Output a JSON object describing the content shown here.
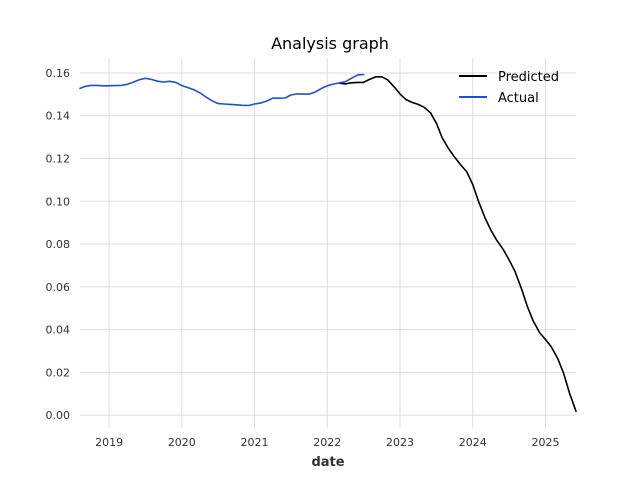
{
  "chart_data": {
    "type": "line",
    "title": "Analysis graph",
    "xlabel": "date",
    "ylabel": "",
    "xlim": [
      2018.6,
      2025.42
    ],
    "ylim": [
      -0.006,
      0.167
    ],
    "grid": true,
    "legend_position": "top-right",
    "x_ticks": [
      2019,
      2020,
      2021,
      2022,
      2023,
      2024,
      2025
    ],
    "y_ticks": [
      0.0,
      0.02,
      0.04,
      0.06,
      0.08,
      0.1,
      0.12,
      0.14,
      0.16
    ],
    "x_tick_labels": [
      "2019",
      "2020",
      "2021",
      "2022",
      "2023",
      "2024",
      "2025"
    ],
    "y_tick_labels": [
      "0.00",
      "0.02",
      "0.04",
      "0.06",
      "0.08",
      "0.10",
      "0.12",
      "0.14",
      "0.16"
    ],
    "series": [
      {
        "name": "Predicted",
        "color": "#000000",
        "points": [
          [
            2022.17,
            0.1552
          ],
          [
            2022.25,
            0.1549
          ],
          [
            2022.33,
            0.1554
          ],
          [
            2022.42,
            0.1556
          ],
          [
            2022.5,
            0.1556
          ],
          [
            2022.58,
            0.157
          ],
          [
            2022.67,
            0.1582
          ],
          [
            2022.75,
            0.1582
          ],
          [
            2022.83,
            0.1568
          ],
          [
            2022.92,
            0.1535
          ],
          [
            2023.0,
            0.1502
          ],
          [
            2023.08,
            0.1476
          ],
          [
            2023.17,
            0.1462
          ],
          [
            2023.25,
            0.1453
          ],
          [
            2023.33,
            0.144
          ],
          [
            2023.42,
            0.1414
          ],
          [
            2023.5,
            0.1365
          ],
          [
            2023.58,
            0.1297
          ],
          [
            2023.67,
            0.1245
          ],
          [
            2023.75,
            0.1207
          ],
          [
            2023.83,
            0.1172
          ],
          [
            2023.92,
            0.1137
          ],
          [
            2024.0,
            0.1079
          ],
          [
            2024.08,
            0.1
          ],
          [
            2024.17,
            0.0922
          ],
          [
            2024.25,
            0.0865
          ],
          [
            2024.33,
            0.0818
          ],
          [
            2024.42,
            0.0774
          ],
          [
            2024.5,
            0.0726
          ],
          [
            2024.58,
            0.0673
          ],
          [
            2024.67,
            0.0591
          ],
          [
            2024.75,
            0.0509
          ],
          [
            2024.83,
            0.0441
          ],
          [
            2024.92,
            0.0386
          ],
          [
            2025.0,
            0.0354
          ],
          [
            2025.08,
            0.0319
          ],
          [
            2025.17,
            0.0264
          ],
          [
            2025.25,
            0.0196
          ],
          [
            2025.33,
            0.0103
          ],
          [
            2025.42,
            0.0018
          ]
        ]
      },
      {
        "name": "Actual",
        "color": "#1f4fd8",
        "points": [
          [
            2018.6,
            0.1528
          ],
          [
            2018.67,
            0.1537
          ],
          [
            2018.75,
            0.1542
          ],
          [
            2018.83,
            0.1542
          ],
          [
            2018.92,
            0.154
          ],
          [
            2019.0,
            0.154
          ],
          [
            2019.08,
            0.1541
          ],
          [
            2019.17,
            0.1542
          ],
          [
            2019.25,
            0.1547
          ],
          [
            2019.33,
            0.1557
          ],
          [
            2019.42,
            0.1569
          ],
          [
            2019.5,
            0.1575
          ],
          [
            2019.58,
            0.157
          ],
          [
            2019.67,
            0.1561
          ],
          [
            2019.75,
            0.1558
          ],
          [
            2019.83,
            0.1561
          ],
          [
            2019.92,
            0.1556
          ],
          [
            2020.0,
            0.1541
          ],
          [
            2020.08,
            0.1532
          ],
          [
            2020.17,
            0.1521
          ],
          [
            2020.25,
            0.1507
          ],
          [
            2020.33,
            0.1488
          ],
          [
            2020.42,
            0.1469
          ],
          [
            2020.5,
            0.1457
          ],
          [
            2020.58,
            0.1455
          ],
          [
            2020.67,
            0.1453
          ],
          [
            2020.75,
            0.1451
          ],
          [
            2020.83,
            0.1449
          ],
          [
            2020.92,
            0.1448
          ],
          [
            2021.0,
            0.1455
          ],
          [
            2021.08,
            0.1459
          ],
          [
            2021.17,
            0.1469
          ],
          [
            2021.25,
            0.1482
          ],
          [
            2021.33,
            0.1482
          ],
          [
            2021.42,
            0.1483
          ],
          [
            2021.5,
            0.1497
          ],
          [
            2021.58,
            0.1502
          ],
          [
            2021.67,
            0.1501
          ],
          [
            2021.75,
            0.1501
          ],
          [
            2021.83,
            0.151
          ],
          [
            2021.92,
            0.1528
          ],
          [
            2022.0,
            0.154
          ],
          [
            2022.08,
            0.1548
          ],
          [
            2022.17,
            0.1554
          ],
          [
            2022.25,
            0.1559
          ],
          [
            2022.33,
            0.1575
          ],
          [
            2022.42,
            0.1591
          ],
          [
            2022.5,
            0.1593
          ]
        ]
      }
    ]
  }
}
